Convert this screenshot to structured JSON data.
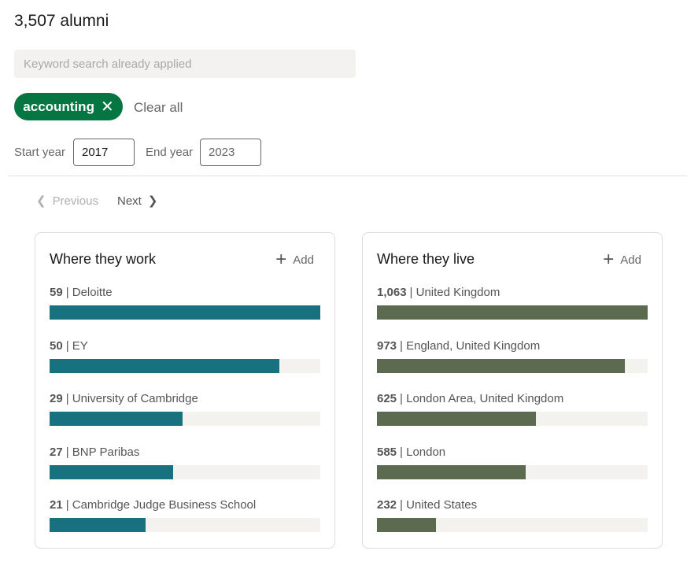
{
  "header": {
    "title": "3,507 alumni"
  },
  "search": {
    "placeholder": "Keyword search already applied",
    "value": ""
  },
  "filters": {
    "chip_label": "accounting",
    "chip_close": "✕",
    "clear_all": "Clear all",
    "start_year_label": "Start year",
    "start_year_value": "2017",
    "end_year_label": "End year",
    "end_year_value": "2023"
  },
  "pagination": {
    "previous": "Previous",
    "next": "Next",
    "prev_icon": "chevron-left-icon",
    "next_icon": "chevron-right-icon"
  },
  "work": {
    "title": "Where they work",
    "add_label": "Add",
    "bar_color": "#17717f",
    "items": [
      {
        "count": "59",
        "label": "| Deloitte",
        "value": 59
      },
      {
        "count": "50",
        "label": "| EY",
        "value": 50
      },
      {
        "count": "29",
        "label": "| University of Cambridge",
        "value": 29
      },
      {
        "count": "27",
        "label": "| BNP Paribas",
        "value": 27
      },
      {
        "count": "21",
        "label": "| Cambridge Judge Business School",
        "value": 21
      }
    ]
  },
  "live": {
    "title": "Where they live",
    "add_label": "Add",
    "bar_color": "#5c6b50",
    "items": [
      {
        "count": "1,063",
        "label": "| United Kingdom",
        "value": 1063
      },
      {
        "count": "973",
        "label": "| England, United Kingdom",
        "value": 973
      },
      {
        "count": "625",
        "label": "| London Area, United Kingdom",
        "value": 625
      },
      {
        "count": "585",
        "label": "| London",
        "value": 585
      },
      {
        "count": "232",
        "label": "| United States",
        "value": 232
      }
    ]
  }
}
